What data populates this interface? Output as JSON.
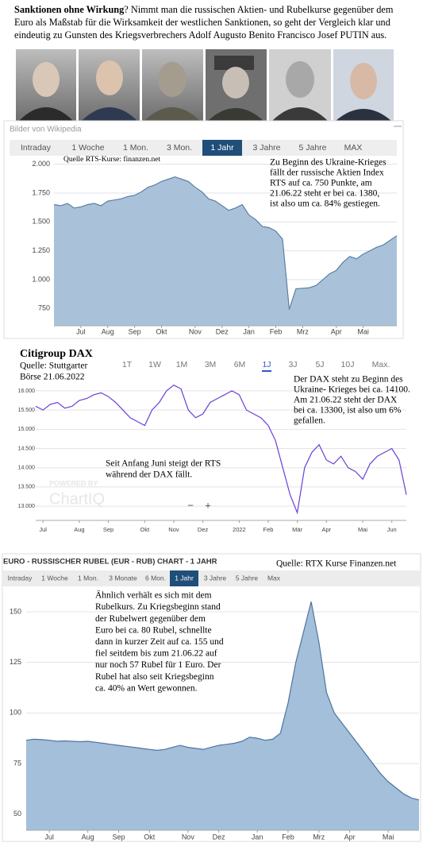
{
  "intro": {
    "lead": "Sanktionen ohne Wirkung",
    "text": "? Nimmt man die russischen Aktien- und Rubelkurse gegenüber dem Euro  als Maßstab für die Wirksamkeit der westlichen Sanktionen, so geht der Vergleich klar und eindeutig zu Gunsten des Kriegsverbrechers Adolf Augusto Benito Francisco Josef PUTIN aus."
  },
  "photo_caption": "Bilder von Wikipedia",
  "chart_data": [
    {
      "type": "area",
      "color": "#a9c2da",
      "line_color": "#5b7fa5",
      "grid": true,
      "tabs": [
        "Intraday",
        "1 Woche",
        "1 Mon.",
        "3 Mon.",
        "1 Jahr",
        "3 Jahre",
        "5 Jahre",
        "MAX"
      ],
      "selected_tab": 4,
      "source": "Quelle RTS-Kurse: finanzen.net",
      "annotation": [
        "Zu Beginn des Ukraine-Krieges",
        "fällt der russische Aktien Index",
        "RTS auf ca. 750 Punkte, am",
        "21.06.22 steht er bei ca. 1380,",
        "ist also um ca. 84% gestiegen."
      ],
      "categories": [
        null,
        null,
        null,
        null,
        "Jul",
        null,
        null,
        null,
        "Aug",
        null,
        null,
        null,
        "Sep",
        null,
        null,
        null,
        "Okt",
        null,
        null,
        null,
        null,
        "Nov",
        null,
        null,
        null,
        "Dez",
        null,
        null,
        null,
        "Jan",
        null,
        null,
        null,
        "Feb",
        null,
        null,
        null,
        "Mrz",
        null,
        null,
        null,
        null,
        "Apr",
        null,
        null,
        null,
        "Mai",
        null,
        null,
        null,
        null,
        null
      ],
      "values": [
        1650,
        1640,
        1660,
        1620,
        1630,
        1650,
        1660,
        1640,
        1680,
        1690,
        1700,
        1720,
        1730,
        1760,
        1800,
        1820,
        1850,
        1870,
        1890,
        1870,
        1850,
        1800,
        1760,
        1700,
        1680,
        1640,
        1600,
        1620,
        1650,
        1560,
        1520,
        1460,
        1450,
        1420,
        1350,
        742,
        920,
        925,
        930,
        950,
        1000,
        1050,
        1080,
        1150,
        1200,
        1180,
        1220,
        1250,
        1280,
        1300,
        1340,
        1380
      ],
      "ylim": [
        600,
        2080
      ],
      "yticks": [
        {
          "value": 2000,
          "label": "2.000"
        },
        {
          "value": 1750,
          "label": "1.750"
        },
        {
          "value": 1500,
          "label": "1.500"
        },
        {
          "value": 1250,
          "label": "1.250"
        },
        {
          "value": 1000,
          "label": "1.000"
        },
        750
      ]
    },
    {
      "type": "line",
      "color": "#6a3fd6",
      "grid": true,
      "title": "Citigroup DAX",
      "source": [
        "Quelle: Stuttgarter",
        "Börse 21.06.2022"
      ],
      "tabs": [
        "1T",
        "1W",
        "1M",
        "3M",
        "6M",
        "1J",
        "3J",
        "5J",
        "10J",
        "Max."
      ],
      "selected_tab": 5,
      "annotation": [
        "Der DAX steht zu Beginn des",
        "Ukraine- Krieges bei ca. 14100.",
        "Am 21.06.22 steht der DAX",
        "bei ca. 13300, ist also um 6%",
        "gefallen."
      ],
      "annotation2": [
        "Seit Anfang Juni steigt der RTS",
        "während der DAX fällt."
      ],
      "watermark": [
        "POWERED BY",
        "ChartIQ"
      ],
      "zoom": [
        "−",
        "+"
      ],
      "categories": [
        null,
        "Jul",
        null,
        null,
        null,
        null,
        "Aug",
        null,
        null,
        null,
        "Sep",
        null,
        null,
        null,
        null,
        "Okt",
        null,
        null,
        null,
        "Nov",
        null,
        null,
        null,
        "Dez",
        null,
        null,
        null,
        null,
        "2022",
        null,
        null,
        null,
        "Feb",
        null,
        null,
        null,
        "Mär",
        null,
        null,
        null,
        "Apr",
        null,
        null,
        null,
        null,
        "Mai",
        null,
        null,
        null,
        "Jun",
        null,
        null
      ],
      "values": [
        15600,
        15500,
        15650,
        15700,
        15550,
        15600,
        15750,
        15800,
        15900,
        15950,
        15850,
        15700,
        15500,
        15300,
        15200,
        15100,
        15500,
        15700,
        16000,
        16150,
        16050,
        15500,
        15300,
        15400,
        15700,
        15800,
        15900,
        16000,
        15900,
        15500,
        15400,
        15300,
        15100,
        14700,
        14000,
        13300,
        12830,
        14000,
        14400,
        14600,
        14200,
        14100,
        14300,
        14000,
        13900,
        13700,
        14100,
        14300,
        14400,
        14500,
        14200,
        13300
      ],
      "ylim": [
        12630,
        16350
      ],
      "yticks": [
        {
          "value": 16000,
          "label": "16.000"
        },
        {
          "value": 15500,
          "label": "15.500"
        },
        {
          "value": 15000,
          "label": "15.000"
        },
        {
          "value": 14500,
          "label": "14.500"
        },
        {
          "value": 14000,
          "label": "14.000"
        },
        {
          "value": 13500,
          "label": "13.500"
        },
        {
          "value": 13000,
          "label": "13.000"
        }
      ]
    },
    {
      "type": "area",
      "color": "#a3bfd9",
      "line_color": "#4f74a0",
      "grid": true,
      "title": "EURO - RUSSISCHER RUBEL (EUR - RUB) CHART - 1 JAHR",
      "source": "Quelle: RTX Kurse Finanzen.net",
      "tabs": [
        "Intraday",
        "1 Woche",
        "1 Mon.",
        "3 Monate",
        "6 Mon.",
        "1 Jahr",
        "3 Jahre",
        "5 Jahre",
        "Max"
      ],
      "selected_tab": 5,
      "annotation": [
        "Ähnlich verhält es sich mit dem",
        "Rubelkurs. Zu Kriegsbeginn stand",
        "der Rubelwert gegenüber dem",
        "Euro bei ca. 80 Rubel, schnellte",
        "dann in kurzer Zeit auf ca. 155 und",
        "fiel seitdem bis zum 21.06.22 auf",
        "nur noch 57 Rubel für 1 Euro. Der",
        "Rubel hat also seit Kriegsbeginn",
        "ca. 40% an Wert gewonnen."
      ],
      "categories": [
        null,
        null,
        null,
        "Jul",
        null,
        null,
        null,
        null,
        "Aug",
        null,
        null,
        null,
        "Sep",
        null,
        null,
        null,
        "Okt",
        null,
        null,
        null,
        null,
        "Nov",
        null,
        null,
        null,
        "Dez",
        null,
        null,
        null,
        null,
        "Jan",
        null,
        null,
        null,
        "Feb",
        null,
        null,
        null,
        "Mrz",
        null,
        null,
        null,
        "Apr",
        null,
        null,
        null,
        null,
        "Mai",
        null,
        null,
        null,
        null
      ],
      "values": [
        86.5,
        87,
        86.8,
        86.5,
        86,
        86.2,
        86,
        85.8,
        86,
        85.5,
        85,
        84.5,
        84,
        83.5,
        83,
        82.5,
        82,
        81.5,
        82,
        83,
        84,
        83,
        82.5,
        82,
        83,
        84,
        84.5,
        85,
        86,
        88,
        87.5,
        86.5,
        87,
        90,
        105,
        125,
        140,
        155,
        135,
        110,
        100,
        95,
        90,
        85,
        80,
        75,
        70,
        66,
        63,
        60,
        58,
        57
      ],
      "ylim": [
        42,
        161
      ],
      "yticks": [
        150,
        125,
        100,
        75,
        50
      ]
    }
  ]
}
